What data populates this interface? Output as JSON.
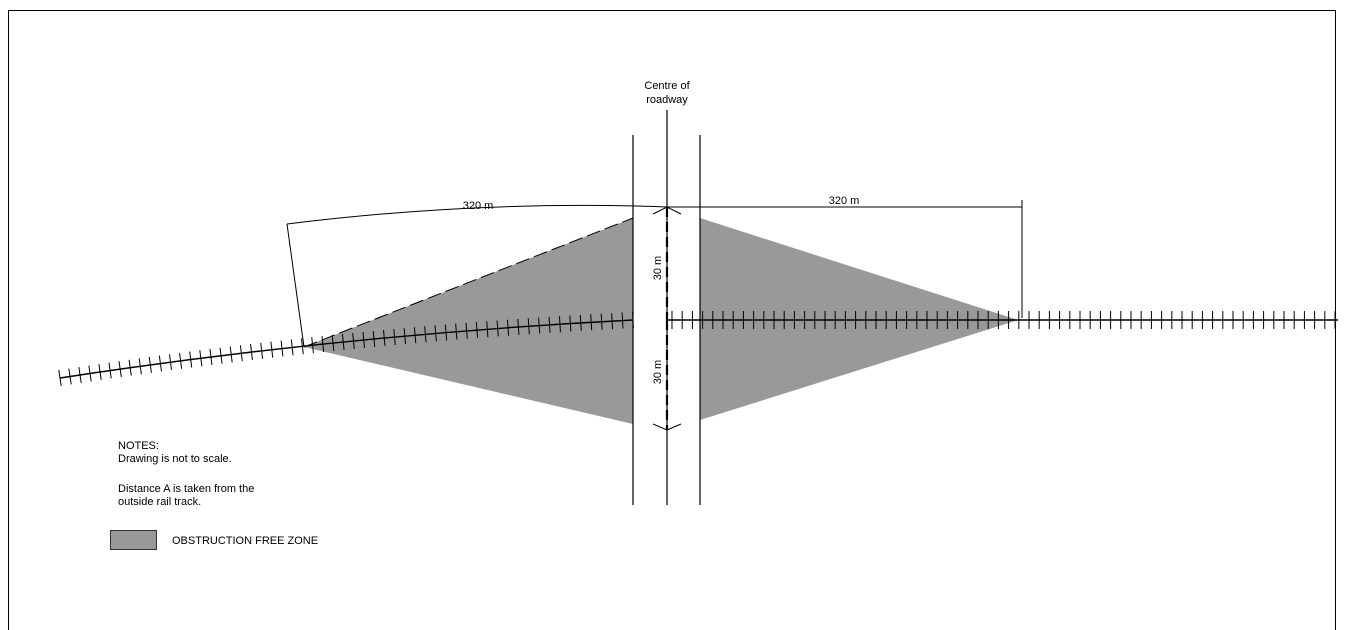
{
  "diagram": {
    "centre_label_line1": "Centre of",
    "centre_label_line2": "roadway",
    "dim_left": "320 m",
    "dim_right": "320 m",
    "dim_up": "30 m",
    "dim_down": "30 m"
  },
  "notes": {
    "heading": "NOTES:",
    "line1": "Drawing is not to scale.",
    "line2": "Distance A is taken from the",
    "line3": "outside rail track."
  },
  "legend": {
    "label": "OBSTRUCTION FREE ZONE",
    "swatch_color": "#999999"
  }
}
